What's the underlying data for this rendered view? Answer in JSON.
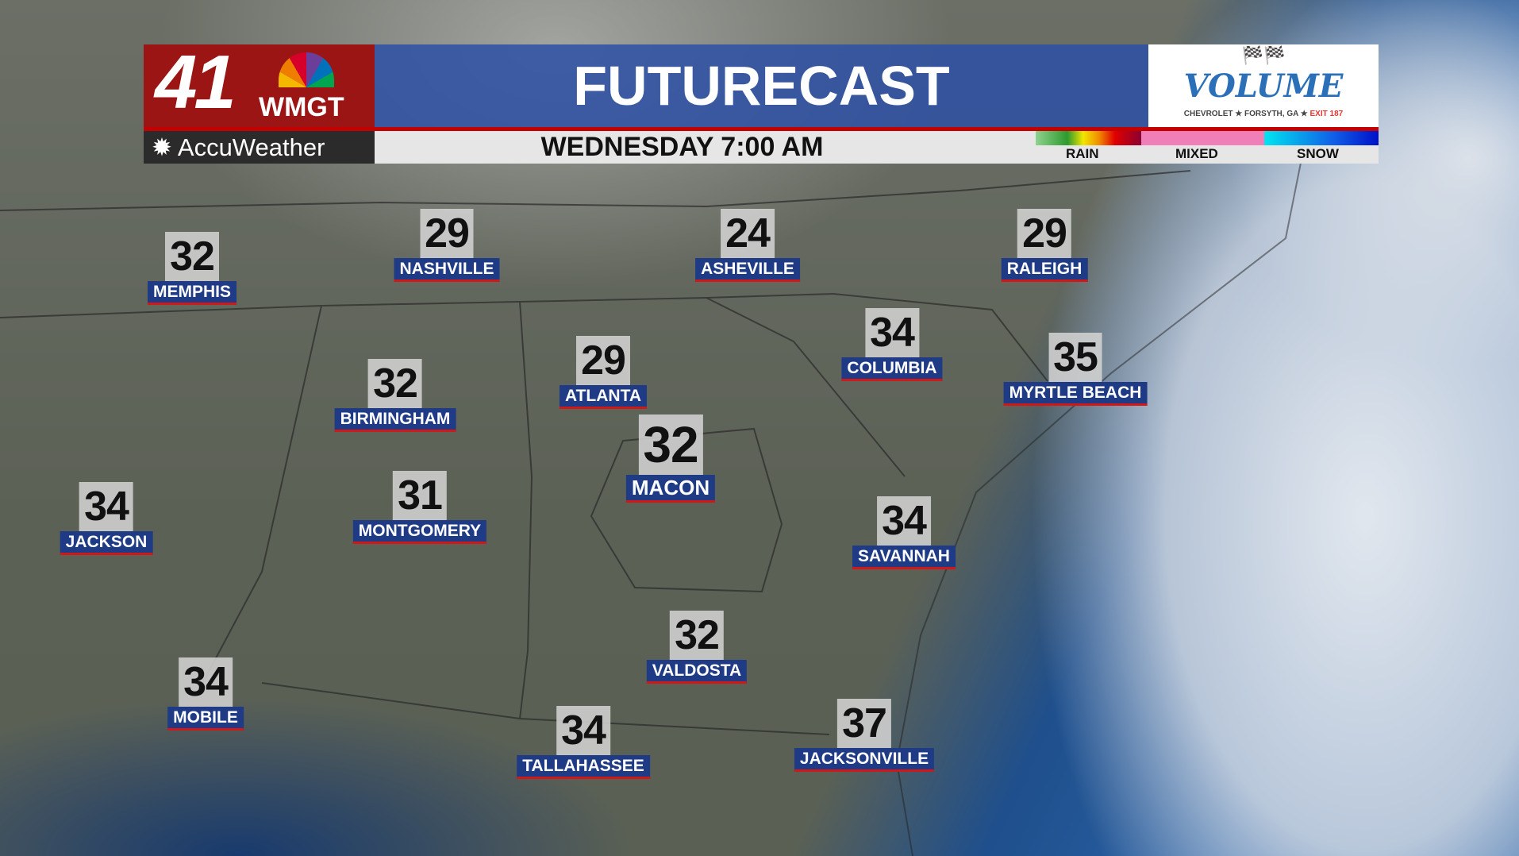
{
  "header": {
    "station_number": "41",
    "station_call": "WMGT",
    "title": "FUTURECAST",
    "brand": "AccuWeather",
    "valid_time": "WEDNESDAY 7:00 AM"
  },
  "sponsor": {
    "name": "VOLUME",
    "tagline_left": "CHEVROLET",
    "tagline_mid": "FORSYTH, GA",
    "tagline_right": "EXIT 187"
  },
  "legend": {
    "rain": "RAIN",
    "mixed": "MIXED",
    "snow": "SNOW",
    "colors": {
      "rain": [
        "#8fd18f",
        "#2e9a2e",
        "#f2e600",
        "#f08c00",
        "#e00000",
        "#8a0030"
      ],
      "mixed": "#f07fb8",
      "snow": [
        "#00e5f0",
        "#1060e8",
        "#0010c8"
      ]
    }
  },
  "cities": [
    {
      "name": "MEMPHIS",
      "temp": "32"
    },
    {
      "name": "NASHVILLE",
      "temp": "29"
    },
    {
      "name": "ASHEVILLE",
      "temp": "24"
    },
    {
      "name": "RALEIGH",
      "temp": "29"
    },
    {
      "name": "COLUMBIA",
      "temp": "34"
    },
    {
      "name": "MYRTLE BEACH",
      "temp": "35"
    },
    {
      "name": "ATLANTA",
      "temp": "29"
    },
    {
      "name": "BIRMINGHAM",
      "temp": "32"
    },
    {
      "name": "MACON",
      "temp": "32"
    },
    {
      "name": "JACKSON",
      "temp": "34"
    },
    {
      "name": "MONTGOMERY",
      "temp": "31"
    },
    {
      "name": "SAVANNAH",
      "temp": "34"
    },
    {
      "name": "VALDOSTA",
      "temp": "32"
    },
    {
      "name": "MOBILE",
      "temp": "34"
    },
    {
      "name": "TALLAHASSEE",
      "temp": "34"
    },
    {
      "name": "JACKSONVILLE",
      "temp": "37"
    }
  ]
}
